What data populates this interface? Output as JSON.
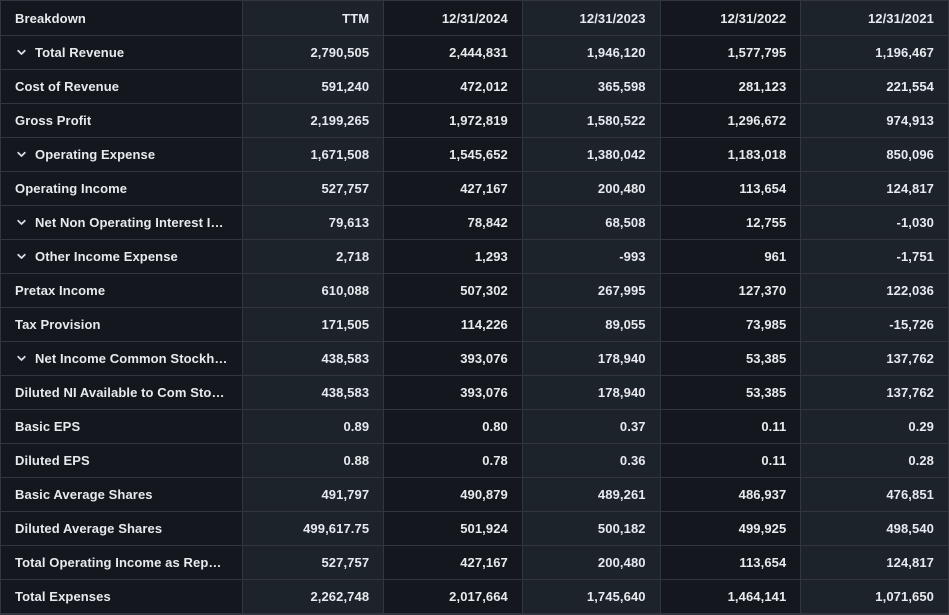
{
  "colors": {
    "dark": "#14181e",
    "light": "#1d232b",
    "border": "#31363f",
    "text": "#e7eaee",
    "bg": "#101419",
    "chevron": "#d9dee4"
  },
  "icons": {
    "expand": "chevron-down"
  },
  "table": {
    "columns": [
      {
        "label": "Breakdown",
        "align": "left",
        "shade": "dark"
      },
      {
        "label": "TTM",
        "align": "right",
        "shade": "light"
      },
      {
        "label": "12/31/2024",
        "align": "right",
        "shade": "dark"
      },
      {
        "label": "12/31/2023",
        "align": "right",
        "shade": "light"
      },
      {
        "label": "12/31/2022",
        "align": "right",
        "shade": "dark"
      },
      {
        "label": "12/31/2021",
        "align": "right",
        "shade": "light"
      }
    ],
    "rows": [
      {
        "label": "Total Revenue",
        "expandable": true,
        "values": [
          "2,790,505",
          "2,444,831",
          "1,946,120",
          "1,577,795",
          "1,196,467"
        ]
      },
      {
        "label": "Cost of Revenue",
        "expandable": false,
        "values": [
          "591,240",
          "472,012",
          "365,598",
          "281,123",
          "221,554"
        ]
      },
      {
        "label": "Gross Profit",
        "expandable": false,
        "values": [
          "2,199,265",
          "1,972,819",
          "1,580,522",
          "1,296,672",
          "974,913"
        ]
      },
      {
        "label": "Operating Expense",
        "expandable": true,
        "values": [
          "1,671,508",
          "1,545,652",
          "1,380,042",
          "1,183,018",
          "850,096"
        ]
      },
      {
        "label": "Operating Income",
        "expandable": false,
        "values": [
          "527,757",
          "427,167",
          "200,480",
          "113,654",
          "124,817"
        ]
      },
      {
        "label": "Net Non Operating Interest In...",
        "expandable": true,
        "values": [
          "79,613",
          "78,842",
          "68,508",
          "12,755",
          "-1,030"
        ]
      },
      {
        "label": "Other Income Expense",
        "expandable": true,
        "values": [
          "2,718",
          "1,293",
          "-993",
          "961",
          "-1,751"
        ]
      },
      {
        "label": "Pretax Income",
        "expandable": false,
        "values": [
          "610,088",
          "507,302",
          "267,995",
          "127,370",
          "122,036"
        ]
      },
      {
        "label": "Tax Provision",
        "expandable": false,
        "values": [
          "171,505",
          "114,226",
          "89,055",
          "73,985",
          "-15,726"
        ]
      },
      {
        "label": "Net Income Common Stockho...",
        "expandable": true,
        "values": [
          "438,583",
          "393,076",
          "178,940",
          "53,385",
          "137,762"
        ]
      },
      {
        "label": "Diluted NI Available to Com Stoc...",
        "expandable": false,
        "values": [
          "438,583",
          "393,076",
          "178,940",
          "53,385",
          "137,762"
        ]
      },
      {
        "label": "Basic EPS",
        "expandable": false,
        "values": [
          "0.89",
          "0.80",
          "0.37",
          "0.11",
          "0.29"
        ]
      },
      {
        "label": "Diluted EPS",
        "expandable": false,
        "values": [
          "0.88",
          "0.78",
          "0.36",
          "0.11",
          "0.28"
        ]
      },
      {
        "label": "Basic Average Shares",
        "expandable": false,
        "values": [
          "491,797",
          "490,879",
          "489,261",
          "486,937",
          "476,851"
        ]
      },
      {
        "label": "Diluted Average Shares",
        "expandable": false,
        "values": [
          "499,617.75",
          "501,924",
          "500,182",
          "499,925",
          "498,540"
        ]
      },
      {
        "label": "Total Operating Income as Repor...",
        "expandable": false,
        "values": [
          "527,757",
          "427,167",
          "200,480",
          "113,654",
          "124,817"
        ]
      },
      {
        "label": "Total Expenses",
        "expandable": false,
        "values": [
          "2,262,748",
          "2,017,664",
          "1,745,640",
          "1,464,141",
          "1,071,650"
        ]
      }
    ]
  }
}
